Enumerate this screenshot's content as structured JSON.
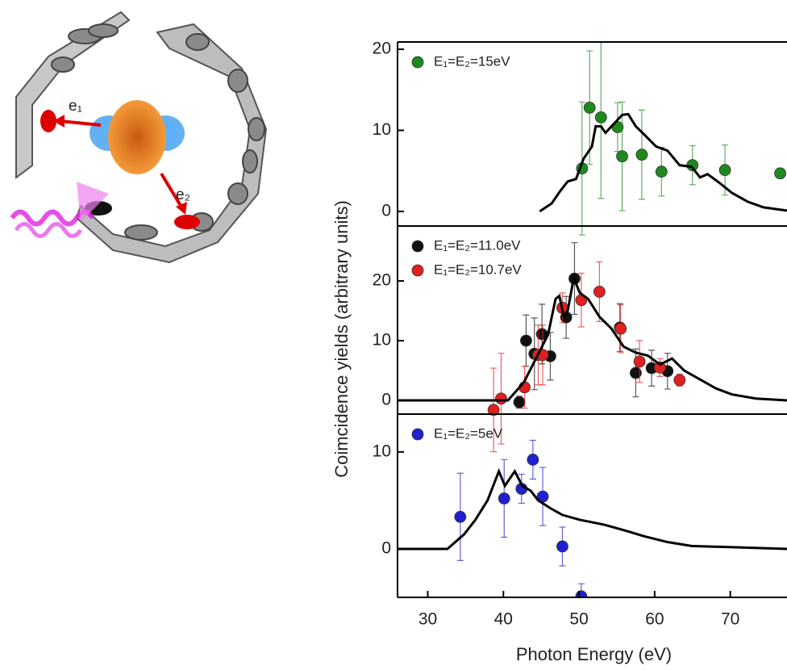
{
  "illustration": {
    "labels": [
      "e₁",
      "e₂"
    ]
  },
  "chart_data": [
    {
      "type": "scatter",
      "xlim": [
        26,
        77.5
      ],
      "ylim": [
        -1.8,
        20.9
      ],
      "yticks": [
        0,
        10,
        20
      ],
      "series": [
        {
          "name": "E₁=E₂=15eV",
          "color": "#1e8a1e",
          "x": [
            50.4,
            51.4,
            52.9,
            55.1,
            55.7,
            58.3,
            60.9,
            65.0,
            69.3,
            76.6
          ],
          "values": [
            5.3,
            12.8,
            11.6,
            10.4,
            6.8,
            7.0,
            4.9,
            5.7,
            5.1,
            4.7
          ],
          "errors": [
            8.2,
            7.0,
            10.0,
            3.0,
            6.7,
            5.5,
            3.0,
            2.4,
            3.1,
            0.6
          ]
        },
        {
          "color": "#000000",
          "mode": "line",
          "x": [
            44.8,
            46.4,
            47.5,
            48.5,
            49.6,
            50.6,
            51.7,
            52.2,
            52.9,
            53.5,
            54.3,
            55.7,
            56.5,
            57.5,
            58.6,
            60.2,
            61.7,
            63.3,
            64.9,
            66.0,
            67.0,
            68.6,
            70.2,
            72.3,
            74.4,
            77.5
          ],
          "values": [
            0,
            1.0,
            2.5,
            3.7,
            4.0,
            6.5,
            8.0,
            10.5,
            10.5,
            9.7,
            10.5,
            11.9,
            12.0,
            10.5,
            9.5,
            8.0,
            7.5,
            5.7,
            5.5,
            4.2,
            4.6,
            3.5,
            2.3,
            1.2,
            0.5,
            0.1
          ]
        }
      ]
    },
    {
      "type": "scatter",
      "xlim": [
        26,
        77.5
      ],
      "ylim": [
        -2.3,
        29.2
      ],
      "yticks": [
        0,
        10,
        20
      ],
      "ylabel": "Coimcidence yields (arbitrary units)",
      "series": [
        {
          "name": "E₁=E₂=11.0eV",
          "color": "#111111",
          "x": [
            42.1,
            43.0,
            44.1,
            45.1,
            46.2,
            48.3,
            49.4,
            55.4,
            57.5,
            59.6,
            61.7
          ],
          "values": [
            -0.3,
            10.0,
            7.8,
            11.1,
            7.4,
            13.9,
            20.4,
            12.2,
            4.6,
            5.4,
            4.9
          ],
          "errors": [
            1.0,
            4.3,
            6.0,
            5.0,
            4.0,
            3.5,
            6.0,
            4.0,
            4.0,
            3.0,
            3.0
          ]
        },
        {
          "name": "E₁=E₂=10.7eV",
          "color": "#e02020",
          "x": [
            38.7,
            39.7,
            42.8,
            44.6,
            45.2,
            47.8,
            50.3,
            52.7,
            55.5,
            58.0,
            60.7,
            63.3
          ],
          "values": [
            -1.6,
            0.3,
            2.2,
            7.6,
            7.6,
            15.5,
            16.8,
            18.2,
            12.0,
            6.5,
            5.5,
            3.4
          ],
          "errors": [
            7.0,
            7.6,
            3.5,
            5.0,
            5.0,
            2.5,
            4.5,
            5.0,
            4.0,
            3.5,
            1.5,
            1.0
          ]
        },
        {
          "color": "#000000",
          "mode": "line",
          "x": [
            26,
            40.6,
            42.7,
            44.3,
            45.9,
            46.9,
            47.4,
            48.0,
            48.5,
            49.3,
            50.1,
            51.2,
            52.7,
            54.3,
            55.9,
            57.5,
            59.1,
            60.7,
            62.3,
            63.9,
            66.0,
            68.1,
            70.2,
            73.4,
            77.5
          ],
          "values": [
            0,
            0,
            3.0,
            7.0,
            11.0,
            17.0,
            17.5,
            14.0,
            15.0,
            20.5,
            18.0,
            17.0,
            14.0,
            12.0,
            9.0,
            8.0,
            7.5,
            6.0,
            7.0,
            5.0,
            3.5,
            2.0,
            1.0,
            0.3,
            0
          ]
        }
      ]
    },
    {
      "type": "scatter",
      "xlim": [
        26,
        77.5
      ],
      "ylim": [
        -5,
        13.9
      ],
      "yticks": [
        0,
        10
      ],
      "xticks": [
        30,
        40,
        50,
        60,
        70
      ],
      "xlabel": "Photon Energy (eV)",
      "series": [
        {
          "name": "E₁=E₂=5eV",
          "color": "#2020d0",
          "x": [
            34.3,
            40.1,
            42.4,
            43.9,
            45.2,
            47.8,
            50.3
          ],
          "values": [
            3.3,
            5.2,
            6.2,
            9.2,
            5.4,
            0.25,
            -4.9
          ],
          "errors": [
            4.5,
            4.0,
            1.5,
            2.0,
            3.0,
            2.0,
            1.3
          ]
        },
        {
          "color": "#000000",
          "mode": "line",
          "x": [
            26,
            32.6,
            34.8,
            36.3,
            37.9,
            39.4,
            40.2,
            41.5,
            42.5,
            43.6,
            44.6,
            46.2,
            47.8,
            50.1,
            53.3,
            56.5,
            58.6,
            61.7,
            64.9,
            77.5
          ],
          "values": [
            0,
            0,
            1.5,
            3.0,
            5.0,
            8.0,
            6.5,
            8.0,
            6.5,
            6.0,
            5.0,
            4.2,
            3.5,
            3.0,
            2.5,
            1.8,
            1.3,
            0.7,
            0.3,
            0
          ]
        }
      ]
    }
  ]
}
